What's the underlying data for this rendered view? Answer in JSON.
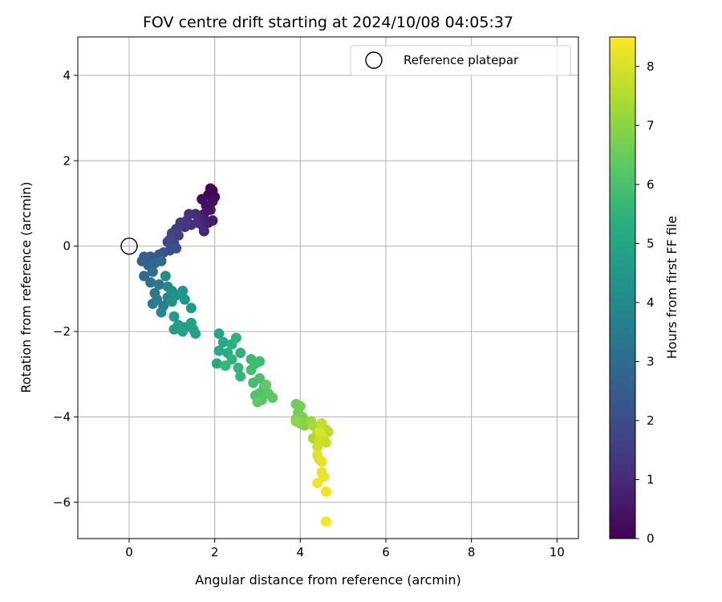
{
  "chart_data": {
    "type": "scatter",
    "title": "FOV centre drift starting at 2024/10/08 04:05:37",
    "xlabel": "Angular distance from reference (arcmin)",
    "ylabel": "Rotation from reference (arcmin)",
    "xlim": [
      -1.2,
      10.5
    ],
    "ylim": [
      -6.85,
      4.9
    ],
    "xticks": [
      0,
      2,
      4,
      6,
      8,
      10
    ],
    "yticks": [
      -6,
      -4,
      -2,
      0,
      2,
      4
    ],
    "grid": true,
    "legend": {
      "placement": "top-right",
      "entries": [
        "Reference platepar"
      ]
    },
    "reference_point": {
      "x": 0,
      "y": 0
    },
    "colorbar": {
      "label": "Hours from first FF file",
      "min": 0,
      "max": 8.5,
      "ticks": [
        0,
        1,
        2,
        3,
        4,
        5,
        6,
        7,
        8
      ],
      "colormap": "viridis"
    },
    "points": [
      [
        1.95,
        1.3,
        0.05
      ],
      [
        1.9,
        1.35,
        0.1
      ],
      [
        1.85,
        1.2,
        0.15
      ],
      [
        2.0,
        1.15,
        0.2
      ],
      [
        1.7,
        1.1,
        0.3
      ],
      [
        1.95,
        1.05,
        0.35
      ],
      [
        1.8,
        0.95,
        0.4
      ],
      [
        1.9,
        0.85,
        0.5
      ],
      [
        1.75,
        0.75,
        0.6
      ],
      [
        1.95,
        0.6,
        0.65
      ],
      [
        1.85,
        0.55,
        0.7
      ],
      [
        1.65,
        0.65,
        0.8
      ],
      [
        1.7,
        0.5,
        0.85
      ],
      [
        1.75,
        0.35,
        0.9
      ],
      [
        1.55,
        0.75,
        1.0
      ],
      [
        1.6,
        0.55,
        1.05
      ],
      [
        1.45,
        0.5,
        1.15
      ],
      [
        1.4,
        0.75,
        1.2
      ],
      [
        1.35,
        0.6,
        1.3
      ],
      [
        1.3,
        0.45,
        1.35
      ],
      [
        1.2,
        0.55,
        1.45
      ],
      [
        1.1,
        0.4,
        1.55
      ],
      [
        1.15,
        0.25,
        1.6
      ],
      [
        1.0,
        0.3,
        1.7
      ],
      [
        0.95,
        0.15,
        1.8
      ],
      [
        1.05,
        0.05,
        1.85
      ],
      [
        0.9,
        0.1,
        1.95
      ],
      [
        1.1,
        -0.05,
        2.0
      ],
      [
        0.95,
        -0.1,
        2.1
      ],
      [
        0.8,
        -0.15,
        2.2
      ],
      [
        0.7,
        -0.2,
        2.3
      ],
      [
        0.5,
        -0.25,
        2.4
      ],
      [
        0.35,
        -0.25,
        2.5
      ],
      [
        0.3,
        -0.35,
        2.6
      ],
      [
        0.45,
        -0.45,
        2.7
      ],
      [
        0.6,
        -0.4,
        2.8
      ],
      [
        0.75,
        -0.35,
        2.9
      ],
      [
        0.35,
        -0.7,
        3.0
      ],
      [
        0.55,
        -0.6,
        3.1
      ],
      [
        0.5,
        -0.85,
        3.2
      ],
      [
        0.7,
        -0.9,
        3.3
      ],
      [
        0.6,
        -1.1,
        3.4
      ],
      [
        0.55,
        -1.35,
        3.5
      ],
      [
        0.65,
        -1.25,
        3.6
      ],
      [
        0.8,
        -1.4,
        3.7
      ],
      [
        0.9,
        -1.2,
        3.8
      ],
      [
        0.75,
        -1.55,
        3.9
      ],
      [
        0.85,
        -0.7,
        4.0
      ],
      [
        0.9,
        -0.95,
        4.1
      ],
      [
        1.0,
        -1.05,
        4.15
      ],
      [
        1.0,
        -1.3,
        4.2
      ],
      [
        1.1,
        -1.15,
        4.3
      ],
      [
        1.25,
        -1.05,
        4.4
      ],
      [
        1.3,
        -1.25,
        4.45
      ],
      [
        1.45,
        -1.45,
        4.5
      ],
      [
        1.05,
        -1.65,
        4.55
      ],
      [
        1.15,
        -1.85,
        4.6
      ],
      [
        1.05,
        -1.95,
        4.65
      ],
      [
        1.3,
        -1.9,
        4.7
      ],
      [
        1.5,
        -1.95,
        4.75
      ],
      [
        1.55,
        -2.05,
        4.8
      ],
      [
        1.45,
        -1.8,
        4.85
      ],
      [
        1.25,
        -2.0,
        4.9
      ],
      [
        2.1,
        -2.05,
        5.0
      ],
      [
        2.2,
        -2.25,
        5.1
      ],
      [
        2.1,
        -2.45,
        5.15
      ],
      [
        2.05,
        -2.75,
        5.2
      ],
      [
        2.3,
        -2.5,
        5.3
      ],
      [
        2.4,
        -2.3,
        5.35
      ],
      [
        2.5,
        -2.15,
        5.4
      ],
      [
        2.6,
        -2.5,
        5.45
      ],
      [
        2.4,
        -2.65,
        5.5
      ],
      [
        2.55,
        -2.85,
        5.55
      ],
      [
        2.6,
        -3.05,
        5.6
      ],
      [
        2.25,
        -2.8,
        5.65
      ],
      [
        2.85,
        -2.65,
        5.7
      ],
      [
        2.95,
        -2.75,
        5.75
      ],
      [
        3.05,
        -2.7,
        5.8
      ],
      [
        2.85,
        -2.9,
        5.85
      ],
      [
        2.9,
        -3.2,
        5.9
      ],
      [
        3.05,
        -3.1,
        6.0
      ],
      [
        3.15,
        -3.3,
        6.05
      ],
      [
        3.05,
        -3.45,
        6.1
      ],
      [
        2.95,
        -3.5,
        6.15
      ],
      [
        3.1,
        -3.6,
        6.2
      ],
      [
        3.25,
        -3.45,
        6.25
      ],
      [
        3.35,
        -3.55,
        6.3
      ],
      [
        3.0,
        -3.65,
        6.35
      ],
      [
        3.2,
        -3.25,
        6.4
      ],
      [
        3.9,
        -3.7,
        6.6
      ],
      [
        4.0,
        -3.75,
        6.65
      ],
      [
        3.95,
        -3.9,
        6.7
      ],
      [
        3.9,
        -4.05,
        6.75
      ],
      [
        4.05,
        -4.0,
        6.8
      ],
      [
        4.0,
        -4.15,
        6.85
      ],
      [
        4.1,
        -4.2,
        6.9
      ],
      [
        3.9,
        -4.1,
        7.0
      ],
      [
        4.25,
        -4.1,
        7.2
      ],
      [
        4.3,
        -4.2,
        7.3
      ],
      [
        4.3,
        -4.5,
        7.4
      ],
      [
        4.4,
        -4.35,
        7.45
      ],
      [
        4.5,
        -4.25,
        7.5
      ],
      [
        4.6,
        -4.3,
        7.55
      ],
      [
        4.65,
        -4.35,
        7.6
      ],
      [
        4.55,
        -4.5,
        7.65
      ],
      [
        4.5,
        -4.15,
        7.7
      ],
      [
        4.6,
        -4.6,
        7.75
      ],
      [
        4.45,
        -4.55,
        7.8
      ],
      [
        4.4,
        -4.7,
        7.85
      ],
      [
        4.5,
        -4.45,
        7.9
      ],
      [
        4.45,
        -4.35,
        8.0
      ],
      [
        4.4,
        -4.9,
        8.05
      ],
      [
        4.45,
        -5.0,
        8.1
      ],
      [
        4.5,
        -5.05,
        8.15
      ],
      [
        4.5,
        -5.3,
        8.2
      ],
      [
        4.55,
        -5.4,
        8.25
      ],
      [
        4.4,
        -5.55,
        8.3
      ],
      [
        4.6,
        -5.75,
        8.35
      ],
      [
        4.6,
        -6.45,
        8.45
      ]
    ]
  }
}
